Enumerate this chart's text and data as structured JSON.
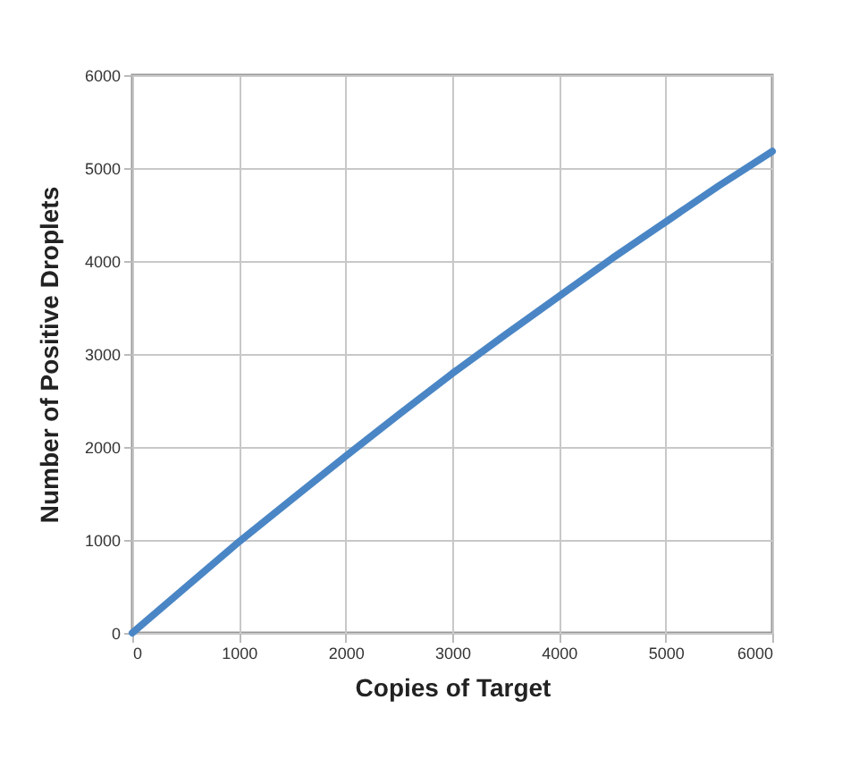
{
  "chart_data": {
    "type": "line",
    "xlabel": "Copies of Target",
    "ylabel": "Number of Positive Droplets",
    "x": [
      0,
      500,
      1000,
      1500,
      2000,
      2500,
      3000,
      3500,
      4000,
      4500,
      5000,
      5500,
      6000
    ],
    "series": [
      {
        "color": "#4a86c5",
        "values": [
          0,
          490,
          980,
          1440,
          1900,
          2350,
          2790,
          3210,
          3620,
          4030,
          4420,
          4810,
          5180
        ]
      }
    ],
    "xlim": [
      0,
      6000
    ],
    "xticks": [
      0,
      1000,
      2000,
      3000,
      4000,
      5000,
      6000
    ],
    "ylim": [
      0,
      6000
    ],
    "yticks": [
      0,
      1000,
      2000,
      3000,
      4000,
      5000,
      6000
    ],
    "grid": true,
    "legend": false,
    "marker": "none",
    "line_style": "solid"
  }
}
